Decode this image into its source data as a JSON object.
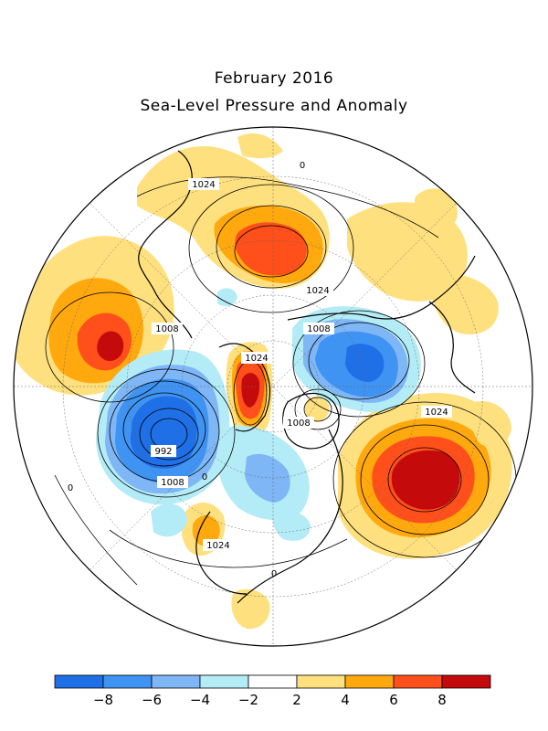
{
  "title": "February 2016",
  "subtitle": "Sea-Level Pressure and Anomaly",
  "contour_labels": [
    {
      "id": "c1",
      "text": "1024"
    },
    {
      "id": "c2",
      "text": "1024"
    },
    {
      "id": "c3",
      "text": "1008"
    },
    {
      "id": "c4",
      "text": "1024"
    },
    {
      "id": "c5",
      "text": "1008"
    },
    {
      "id": "c6",
      "text": "1008"
    },
    {
      "id": "c7",
      "text": "992"
    },
    {
      "id": "c8",
      "text": "1008"
    },
    {
      "id": "c9",
      "text": "1024"
    },
    {
      "id": "c10",
      "text": "1024"
    },
    {
      "id": "c11",
      "text": "0"
    },
    {
      "id": "c12",
      "text": "0"
    },
    {
      "id": "c13",
      "text": "0"
    },
    {
      "id": "c14",
      "text": "0"
    }
  ],
  "colorbar": {
    "colors": [
      "#1f6fe6",
      "#3f93f2",
      "#7fb6f6",
      "#b3ecf6",
      "#ffffff",
      "#ffe07f",
      "#ffa90f",
      "#ff4f1a",
      "#c40a0a"
    ],
    "ticks": [
      "−8",
      "−6",
      "−4",
      "−2",
      "2",
      "4",
      "6",
      "8"
    ]
  },
  "anomaly_colors": {
    "very_neg": "#1f6fe6",
    "neg": "#3f93f2",
    "mod_neg": "#7fb6f6",
    "weak_neg": "#b3ecf6",
    "weak_pos": "#ffe07f",
    "mod_pos": "#ffa90f",
    "pos": "#ff4f1a",
    "very_pos": "#c40a0a"
  }
}
